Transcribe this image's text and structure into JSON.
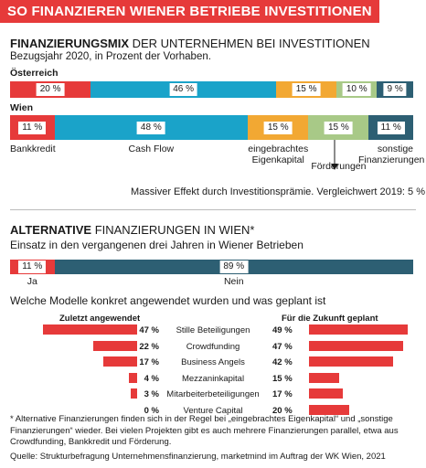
{
  "header": {
    "title": "SO FINANZIEREN WIENER BETRIEBE INVESTITIONEN"
  },
  "section1": {
    "title_bold": "FINANZIERUNGSMIX",
    "title_rest": " DER UNTERNEHMEN BEI INVESTITIONEN",
    "subtitle": "Bezugsjahr 2020, in Prozent der Vorhaben.",
    "note": "Massiver Effekt durch Investitionsprämie. Vergleichwert 2019: 5 %"
  },
  "section2": {
    "title_bold": "ALTERNATIVE",
    "title_rest": " FINANZIERUNGEN IN WIEN*",
    "subtitle": "Einsatz in den vergangenen drei Jahren in Wiener Betrieben",
    "question": "Welche Modelle konkret angewendet wurden und was geplant ist",
    "col_left": "Zuletzt angewendet",
    "col_right": "Für die Zukunft geplant"
  },
  "footnote": "* Alternative Finanzierungen finden sich in der Regel bei „eingebrachtes Eigenkapital“ und „sonstige Finanzierungen“ wieder. Bei vielen Projekten gibt es auch mehrere Finanzierungen parallel, etwa aus Crowdfunding, Bankkredit und Förderung.",
  "source": "Quelle: Strukturbefragung Unternehmensfinanzierung, marketmind im Auftrag der WK Wien, 2021",
  "chart_data": [
    {
      "type": "bar",
      "stacked": true,
      "orientation": "horizontal",
      "title": "FINANZIERUNGSMIX DER UNTERNEHMEN BEI INVESTITIONEN",
      "categories": [
        "Bankkredit",
        "Cash Flow",
        "eingebrachtes Eigenkapital",
        "Förderungen",
        "sonstige Finanzierungen"
      ],
      "category_labels": [
        "Bankkredit",
        "Cash Flow",
        "eingebrachtes\nEigenkapital",
        "Förderungen",
        "sonstige\nFinanzierungen"
      ],
      "colors": [
        "#e63a3a",
        "#1aa3c9",
        "#f2a833",
        "#a8c987",
        "#2d5f73"
      ],
      "series": [
        {
          "name": "Österreich",
          "values": [
            20,
            46,
            15,
            10,
            9
          ],
          "labels": [
            "20 %",
            "46 %",
            "15 %",
            "10 %",
            "9 %"
          ]
        },
        {
          "name": "Wien",
          "values": [
            11,
            48,
            15,
            15,
            11
          ],
          "labels": [
            "11 %",
            "48 %",
            "15 %",
            "15 %",
            "11 %"
          ]
        }
      ],
      "unit": "%"
    },
    {
      "type": "bar",
      "stacked": true,
      "orientation": "horizontal",
      "title": "ALTERNATIVE FINANZIERUNGEN IN WIEN*",
      "categories": [
        "Ja",
        "Nein"
      ],
      "values": [
        11,
        89
      ],
      "labels": [
        "11 %",
        "89 %"
      ],
      "colors": [
        "#e63a3a",
        "#2d5f73"
      ],
      "unit": "%"
    },
    {
      "type": "bar",
      "orientation": "horizontal",
      "title": "Welche Modelle konkret angewendet wurden und was geplant ist",
      "categories": [
        "Stille Beteiligungen",
        "Crowdfunding",
        "Business Angels",
        "Mezzaninkapital",
        "Mitarbeiterbeteiligungen",
        "Venture Capital"
      ],
      "series": [
        {
          "name": "Zuletzt angewendet",
          "values": [
            47,
            22,
            17,
            4,
            3,
            0
          ],
          "labels": [
            "47 %",
            "22 %",
            "17 %",
            "4 %",
            "3 %",
            "0 %"
          ]
        },
        {
          "name": "Für die Zukunft geplant",
          "values": [
            49,
            47,
            42,
            15,
            17,
            20
          ],
          "labels": [
            "49 %",
            "47 %",
            "42 %",
            "15 %",
            "17 %",
            "20 %"
          ]
        }
      ],
      "color": "#e63a3a",
      "unit": "%"
    }
  ]
}
